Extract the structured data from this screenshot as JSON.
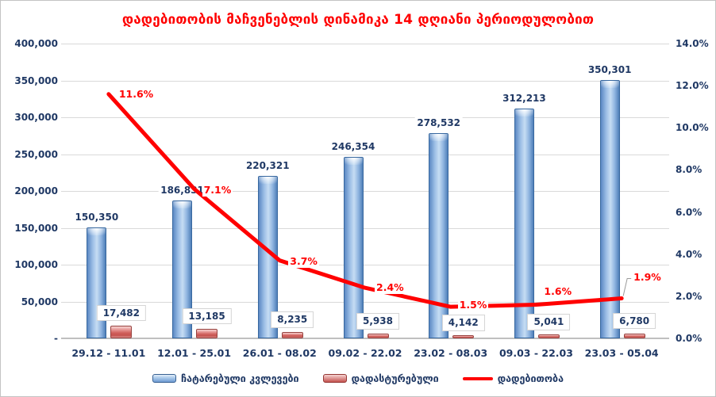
{
  "colors": {
    "title": "#FF0000",
    "axis_text": "#1F3864",
    "bar_blue": "#95B3D7",
    "bar_blue_border": "#376092",
    "bar_red": "#D99694",
    "bar_red_border": "#943634",
    "line_red": "#FF0000",
    "gridline": "#D9D9D9"
  },
  "chart_data": {
    "type": "bar",
    "title": "დადებითობის მაჩვენებლის დინამიკა 14 დღიანი პერიოდულობით",
    "xlabel": "",
    "ylabel": "",
    "grid": true,
    "legend_position": "bottom",
    "categories": [
      "29.12 - 11.01",
      "12.01 - 25.01",
      "26.01 - 08.02",
      "09.02 - 22.02",
      "23.02 - 08.03",
      "09.03 - 22.03",
      "23.03 - 05.04"
    ],
    "series": [
      {
        "name": "ჩატარებული კვლევები",
        "type": "bar",
        "axis": "left",
        "color": "#95B3D7",
        "values": [
          150350,
          186831,
          220321,
          246354,
          278532,
          312213,
          350301
        ],
        "labels": [
          "150,350",
          "186,831",
          "220,321",
          "246,354",
          "278,532",
          "312,213",
          "350,301"
        ]
      },
      {
        "name": "დადასტურებული",
        "type": "bar",
        "axis": "left",
        "color": "#D99694",
        "values": [
          17482,
          13185,
          8235,
          5938,
          4142,
          5041,
          6780
        ],
        "labels": [
          "17,482",
          "13,185",
          "8,235",
          "5,938",
          "4,142",
          "5,041",
          "6,780"
        ]
      },
      {
        "name": "დადებითობა",
        "type": "line",
        "axis": "right",
        "color": "#FF0000",
        "values": [
          11.6,
          7.1,
          3.7,
          2.4,
          1.5,
          1.6,
          1.9
        ],
        "labels": [
          "11.6%",
          "7.1%",
          "3.7%",
          "2.4%",
          "1.5%",
          "1.6%",
          "1.9%"
        ]
      }
    ],
    "left_axis": {
      "min": 0,
      "max": 400000,
      "ticks": [
        "400,000",
        "350,000",
        "300,000",
        "250,000",
        "200,000",
        "150,000",
        "100,000",
        "50,000",
        "-"
      ]
    },
    "right_axis": {
      "min": 0,
      "max": 14,
      "ticks": [
        "14.0%",
        "12.0%",
        "10.0%",
        "8.0%",
        "6.0%",
        "4.0%",
        "2.0%",
        "0.0%"
      ]
    }
  }
}
